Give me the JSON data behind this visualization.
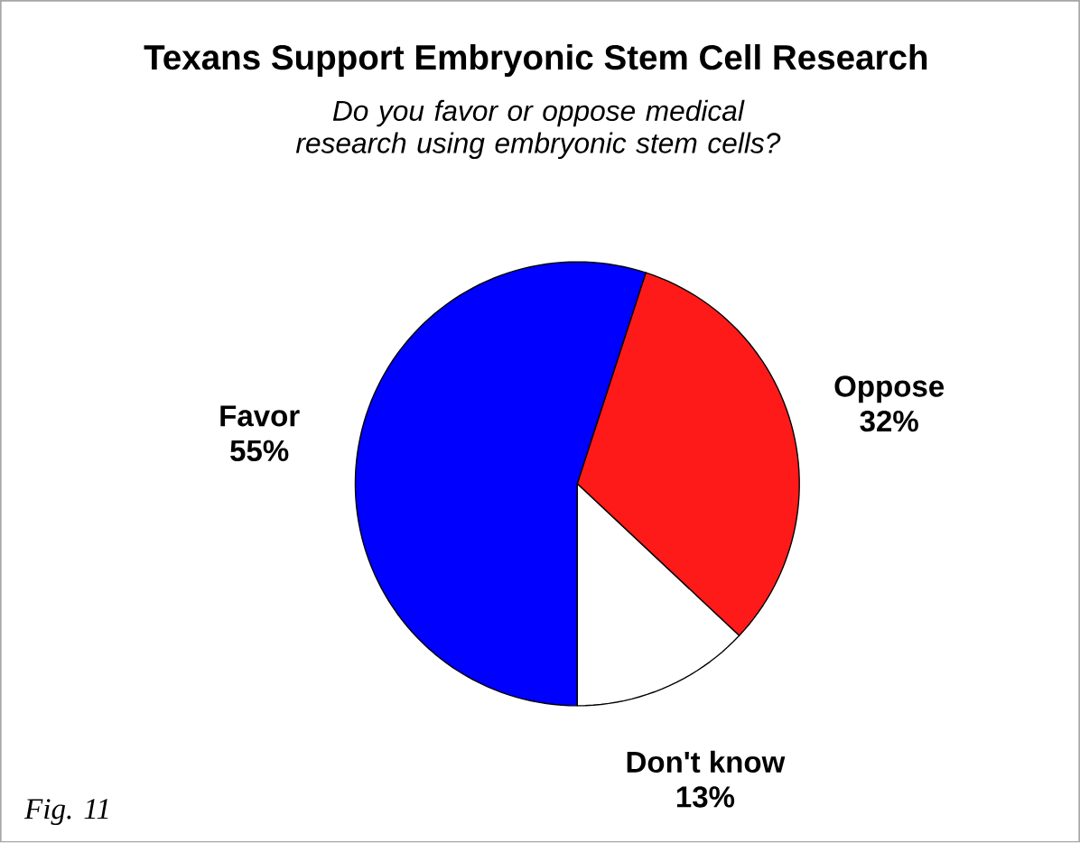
{
  "chart_data": {
    "type": "pie",
    "title": "Texans Support Embryonic Stem Cell Research",
    "subtitle": "Do you favor or oppose medical research using embryonic stem cells?",
    "categories": [
      "Favor",
      "Oppose",
      "Don't know"
    ],
    "values": [
      55,
      32,
      13
    ],
    "colors": [
      "#0000ff",
      "#ff1a1a",
      "#ffffff"
    ],
    "value_labels": [
      "55%",
      "32%",
      "13%"
    ],
    "annotations": [
      "Fig. 11"
    ]
  }
}
